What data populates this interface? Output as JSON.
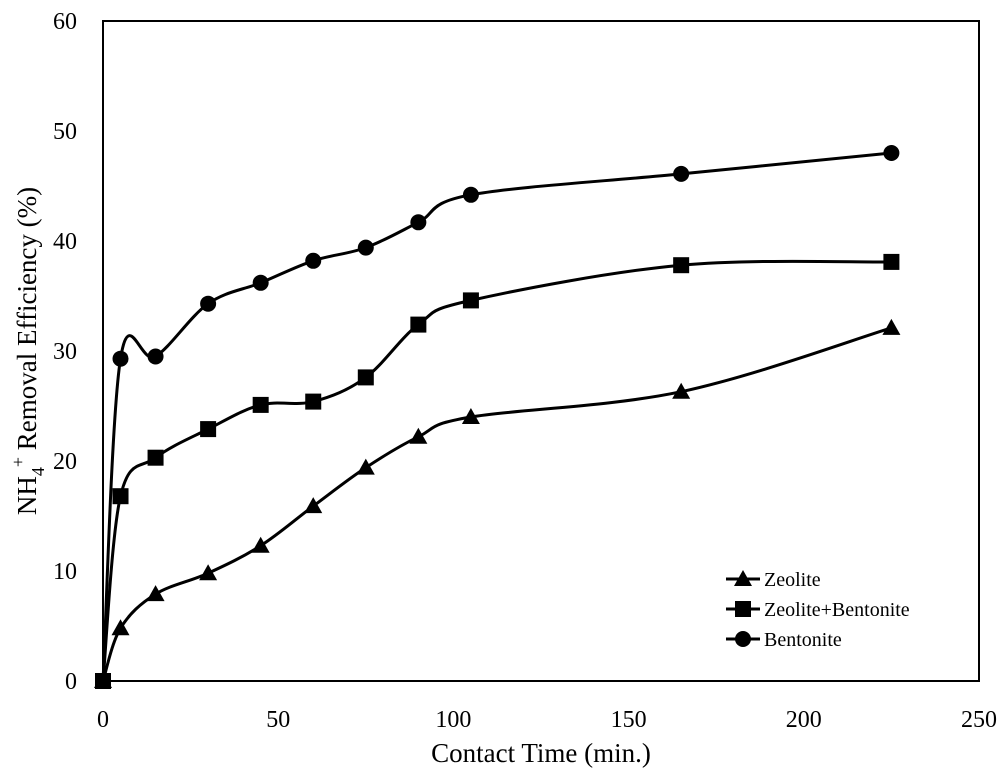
{
  "chart_data": {
    "type": "line",
    "title": "",
    "xlabel": "Contact Time (min.)",
    "ylabel": {
      "prefix": "NH",
      "subscript": "4",
      "superscript": "+",
      "suffix": " Removal Efficiency (%)"
    },
    "xlim": [
      0,
      250
    ],
    "ylim": [
      0,
      60
    ],
    "xticks": [
      0,
      50,
      100,
      150,
      200,
      250
    ],
    "yticks": [
      0,
      10,
      20,
      30,
      40,
      50,
      60
    ],
    "grid": false,
    "legend_position": "bottom-right",
    "series": [
      {
        "name": "Zeolite",
        "marker": "triangle",
        "color": "#000000",
        "x": [
          0,
          5,
          15,
          30,
          45,
          60,
          75,
          90,
          105,
          165,
          225
        ],
        "y": [
          0,
          4.8,
          7.9,
          9.8,
          12.3,
          15.9,
          19.4,
          22.2,
          24.0,
          26.3,
          32.1
        ]
      },
      {
        "name": "Zeolite+Bentonite",
        "marker": "square",
        "color": "#000000",
        "x": [
          0,
          5,
          15,
          30,
          45,
          60,
          75,
          90,
          105,
          165,
          225
        ],
        "y": [
          0,
          16.8,
          20.3,
          22.9,
          25.1,
          25.4,
          27.6,
          32.4,
          34.6,
          37.8,
          38.1
        ]
      },
      {
        "name": "Bentonite",
        "marker": "circle",
        "color": "#000000",
        "x": [
          0,
          5,
          15,
          30,
          45,
          60,
          75,
          90,
          105,
          165,
          225
        ],
        "y": [
          0,
          29.3,
          29.5,
          34.3,
          36.2,
          38.2,
          39.4,
          41.7,
          44.2,
          46.1,
          48.0
        ]
      }
    ]
  }
}
